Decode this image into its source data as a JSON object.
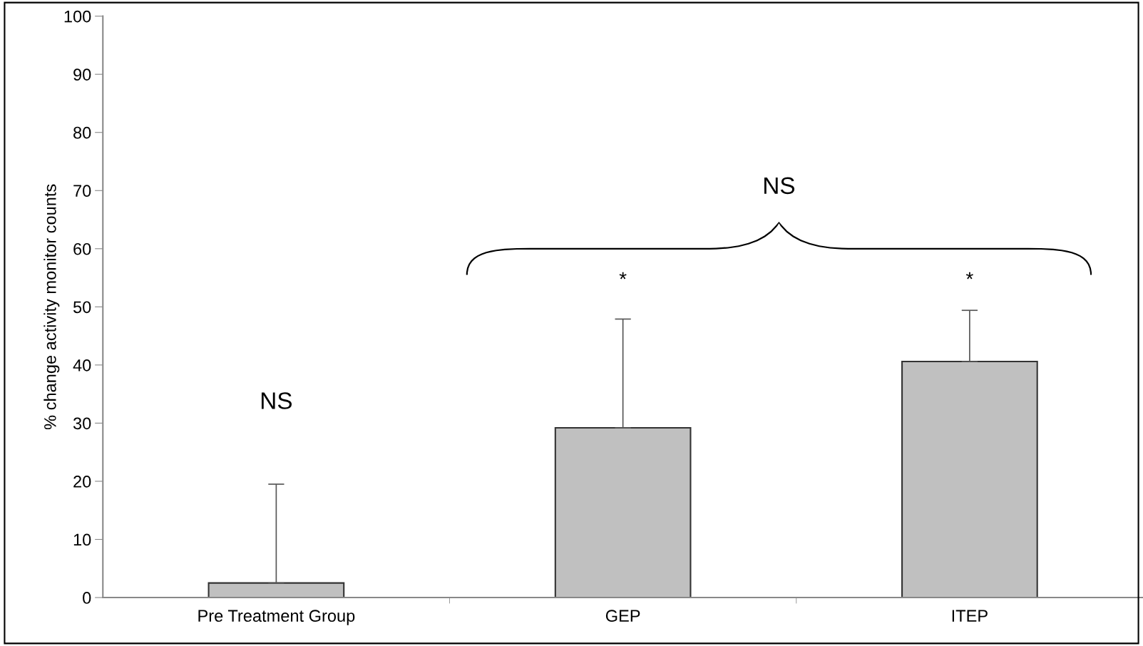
{
  "chart_data": {
    "type": "bar",
    "categories": [
      "Pre Treatment Group",
      "GEP",
      "ITEP"
    ],
    "values": [
      2.5,
      29.2,
      40.6
    ],
    "errors": [
      [
        2.5,
        19.5
      ],
      [
        29.2,
        47.9
      ],
      [
        40.6,
        49.4
      ]
    ],
    "color": "#c0c0c0",
    "ylabel": "% change activity monitor counts",
    "ylim": [
      0,
      100
    ],
    "yticks": [
      0,
      10,
      20,
      30,
      40,
      50,
      60,
      70,
      80,
      90,
      100
    ],
    "grid": false,
    "annotations": [
      "NS",
      "*",
      "*",
      "NS"
    ]
  }
}
